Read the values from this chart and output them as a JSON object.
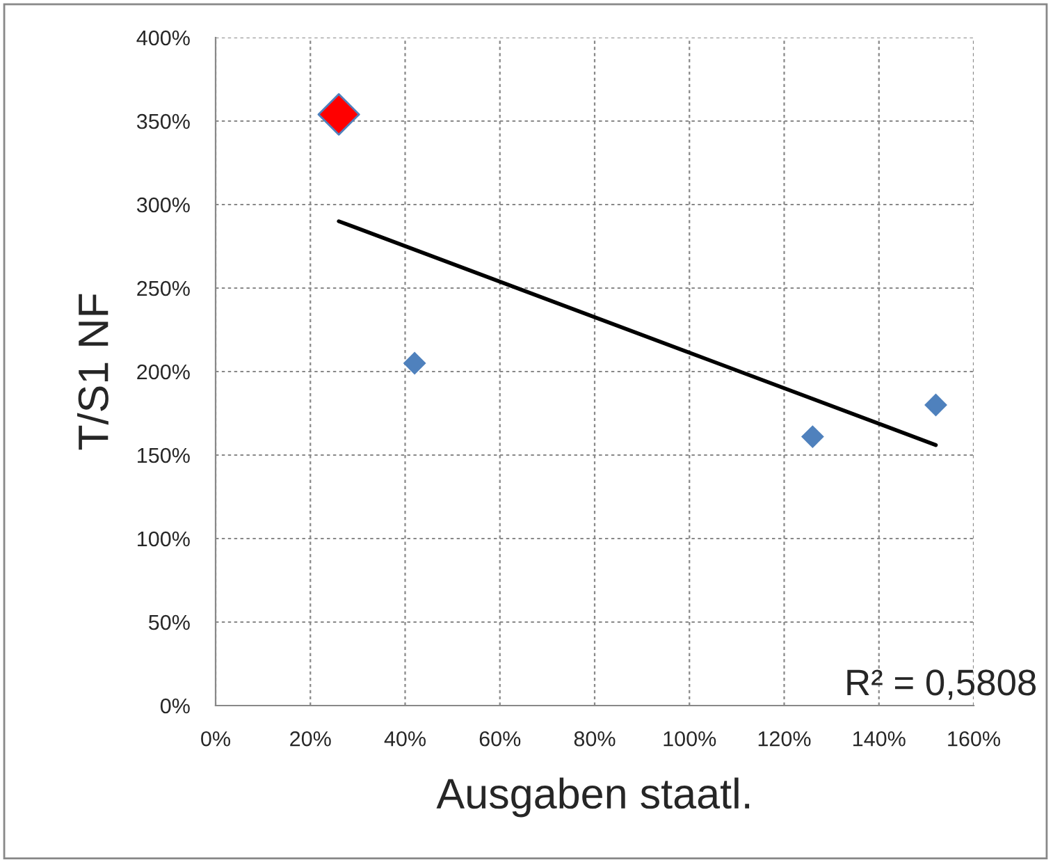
{
  "chart_data": {
    "type": "scatter",
    "xlabel": "Ausgaben staatl.",
    "ylabel": "T/S1 NF",
    "series": [
      {
        "color": "#4f81bd",
        "marker": "diamond",
        "x": [
          42,
          126,
          152
        ],
        "values": [
          205,
          161,
          180
        ]
      },
      {
        "color": "#ff0000",
        "marker": "diamond",
        "x": [
          26
        ],
        "values": [
          354
        ]
      },
      {
        "type": "line",
        "marker": "none",
        "color": "#000000",
        "x": [
          26,
          152
        ],
        "values": [
          290,
          156
        ]
      }
    ],
    "xlim": [
      0,
      160
    ],
    "ylim": [
      0,
      400
    ],
    "xticks": [
      {
        "value": 0,
        "label": "0%"
      },
      {
        "value": 20,
        "label": "20%"
      },
      {
        "value": 40,
        "label": "40%"
      },
      {
        "value": 60,
        "label": "60%"
      },
      {
        "value": 80,
        "label": "80%"
      },
      {
        "value": 100,
        "label": "100%"
      },
      {
        "value": 120,
        "label": "120%"
      },
      {
        "value": 140,
        "label": "140%"
      },
      {
        "value": 160,
        "label": "160%"
      }
    ],
    "yticks": [
      {
        "value": 0,
        "label": "0%"
      },
      {
        "value": 50,
        "label": "50%"
      },
      {
        "value": 100,
        "label": "100%"
      },
      {
        "value": 150,
        "label": "150%"
      },
      {
        "value": 200,
        "label": "200%"
      },
      {
        "value": 250,
        "label": "250%"
      },
      {
        "value": 300,
        "label": "300%"
      },
      {
        "value": 350,
        "label": "350%"
      },
      {
        "value": 400,
        "label": "400%"
      }
    ],
    "grid": true,
    "legend": false,
    "annotations": [
      "R² = 0,5808"
    ]
  }
}
